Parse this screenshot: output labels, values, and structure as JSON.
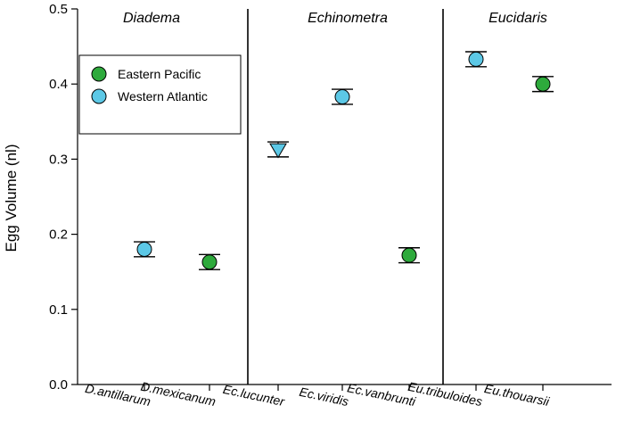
{
  "chart_data": {
    "type": "scatter",
    "ylabel": "Egg Volume (nl)",
    "xlabel": "",
    "ylim": [
      0.0,
      0.5
    ],
    "yticks": [
      "0.0",
      "0.1",
      "0.2",
      "0.3",
      "0.4",
      "0.5"
    ],
    "grid": false,
    "legend_position": "top-left",
    "groups": [
      "Diadema",
      "Echinometra",
      "Eucidaris"
    ],
    "categories": [
      "D.antillarum",
      "D.mexicanum",
      "Ec.lucunter",
      "Ec.viridis",
      "Ec.vanbrunti",
      "Eu.tribuloides",
      "Eu.thouarsii"
    ],
    "series": [
      {
        "name": "Eastern Pacific",
        "color": "#2eaa3c",
        "marker": "circle",
        "points": [
          {
            "category": "D.mexicanum",
            "value": 0.163,
            "error": 0.01
          },
          {
            "category": "Ec.vanbrunti",
            "value": 0.172,
            "error": 0.01
          },
          {
            "category": "Eu.thouarsii",
            "value": 0.4,
            "error": 0.01
          }
        ]
      },
      {
        "name": "Western Atlantic",
        "color": "#5cc8e6",
        "marker": "circle",
        "points": [
          {
            "category": "D.antillarum",
            "value": 0.18,
            "error": 0.01
          },
          {
            "category": "Ec.lucunter",
            "value": 0.313,
            "error": 0.01,
            "marker": "triangle-down"
          },
          {
            "category": "Ec.viridis",
            "value": 0.383,
            "error": 0.01
          },
          {
            "category": "Eu.tribuloides",
            "value": 0.433,
            "error": 0.01
          }
        ]
      }
    ]
  }
}
